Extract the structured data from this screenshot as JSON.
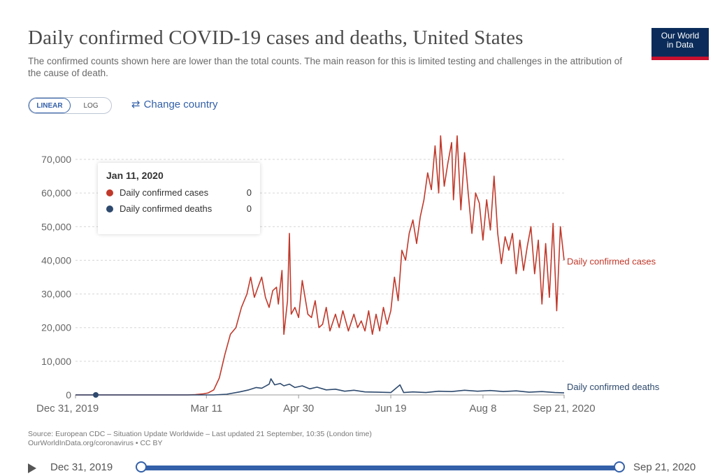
{
  "header": {
    "title": "Daily confirmed COVID-19 cases and deaths, United States",
    "subtitle": "The confirmed counts shown here are lower than the total counts. The main reason for this is limited testing and challenges in the attribution of the cause of death.",
    "logo_line1": "Our World",
    "logo_line2": "in Data"
  },
  "controls": {
    "scale_options": [
      "LINEAR",
      "LOG"
    ],
    "selected_scale": "LINEAR",
    "change_country_label": "Change country",
    "change_country_icon": "swap-arrows-icon"
  },
  "tooltip": {
    "date": "Jan 11, 2020",
    "rows": [
      {
        "label": "Daily confirmed cases",
        "value": "0",
        "color": "#c0392b"
      },
      {
        "label": "Daily confirmed deaths",
        "value": "0",
        "color": "#2e4a6e"
      }
    ]
  },
  "chart_data": {
    "type": "line",
    "title": "Daily confirmed COVID-19 cases and deaths, United States",
    "xlabel": "",
    "ylabel": "",
    "ylim": [
      0,
      70000
    ],
    "yticks": [
      0,
      10000,
      20000,
      30000,
      40000,
      50000,
      60000,
      70000
    ],
    "ytick_labels": [
      "0",
      "10,000",
      "20,000",
      "30,000",
      "40,000",
      "50,000",
      "60,000",
      "70,000"
    ],
    "x_start": "2019-12-31",
    "x_end": "2020-09-21",
    "xtick_labels": [
      "Dec 31, 2019",
      "Mar 11",
      "Apr 30",
      "Jun 19",
      "Aug 8",
      "Sep 21, 2020"
    ],
    "xtick_dates": [
      "2019-12-31",
      "2020-03-11",
      "2020-04-30",
      "2020-06-19",
      "2020-08-08",
      "2020-09-21"
    ],
    "grid": "horizontal dotted",
    "hover_date": "2020-01-11",
    "series": [
      {
        "name": "Daily confirmed cases",
        "color": "#c0392b",
        "points": [
          [
            "2019-12-31",
            0
          ],
          [
            "2020-03-01",
            0
          ],
          [
            "2020-03-05",
            100
          ],
          [
            "2020-03-09",
            300
          ],
          [
            "2020-03-12",
            600
          ],
          [
            "2020-03-15",
            1500
          ],
          [
            "2020-03-18",
            5000
          ],
          [
            "2020-03-21",
            12000
          ],
          [
            "2020-03-24",
            18000
          ],
          [
            "2020-03-27",
            20000
          ],
          [
            "2020-03-30",
            26000
          ],
          [
            "2020-04-02",
            30000
          ],
          [
            "2020-04-04",
            35000
          ],
          [
            "2020-04-06",
            29000
          ],
          [
            "2020-04-08",
            32000
          ],
          [
            "2020-04-10",
            35000
          ],
          [
            "2020-04-12",
            29000
          ],
          [
            "2020-04-14",
            26000
          ],
          [
            "2020-04-16",
            31000
          ],
          [
            "2020-04-18",
            32000
          ],
          [
            "2020-04-19",
            27000
          ],
          [
            "2020-04-21",
            37000
          ],
          [
            "2020-04-22",
            18000
          ],
          [
            "2020-04-24",
            28000
          ],
          [
            "2020-04-25",
            48000
          ],
          [
            "2020-04-26",
            24000
          ],
          [
            "2020-04-28",
            26000
          ],
          [
            "2020-04-30",
            23000
          ],
          [
            "2020-05-02",
            34000
          ],
          [
            "2020-05-05",
            24000
          ],
          [
            "2020-05-07",
            23000
          ],
          [
            "2020-05-09",
            28000
          ],
          [
            "2020-05-11",
            20000
          ],
          [
            "2020-05-13",
            21000
          ],
          [
            "2020-05-15",
            26000
          ],
          [
            "2020-05-17",
            19000
          ],
          [
            "2020-05-20",
            24000
          ],
          [
            "2020-05-22",
            20000
          ],
          [
            "2020-05-24",
            25000
          ],
          [
            "2020-05-27",
            19000
          ],
          [
            "2020-05-30",
            24000
          ],
          [
            "2020-06-01",
            20000
          ],
          [
            "2020-06-03",
            22000
          ],
          [
            "2020-06-05",
            19000
          ],
          [
            "2020-06-07",
            25000
          ],
          [
            "2020-06-09",
            18000
          ],
          [
            "2020-06-11",
            24000
          ],
          [
            "2020-06-13",
            19000
          ],
          [
            "2020-06-15",
            26000
          ],
          [
            "2020-06-17",
            21000
          ],
          [
            "2020-06-19",
            25000
          ],
          [
            "2020-06-21",
            35000
          ],
          [
            "2020-06-23",
            28000
          ],
          [
            "2020-06-25",
            43000
          ],
          [
            "2020-06-27",
            40000
          ],
          [
            "2020-06-29",
            48000
          ],
          [
            "2020-07-01",
            52000
          ],
          [
            "2020-07-03",
            45000
          ],
          [
            "2020-07-05",
            53000
          ],
          [
            "2020-07-07",
            58000
          ],
          [
            "2020-07-09",
            66000
          ],
          [
            "2020-07-11",
            61000
          ],
          [
            "2020-07-13",
            74000
          ],
          [
            "2020-07-15",
            60000
          ],
          [
            "2020-07-16",
            77000
          ],
          [
            "2020-07-18",
            62000
          ],
          [
            "2020-07-20",
            69000
          ],
          [
            "2020-07-22",
            75000
          ],
          [
            "2020-07-23",
            58000
          ],
          [
            "2020-07-25",
            77000
          ],
          [
            "2020-07-27",
            55000
          ],
          [
            "2020-07-29",
            72000
          ],
          [
            "2020-07-31",
            60000
          ],
          [
            "2020-08-02",
            48000
          ],
          [
            "2020-08-04",
            60000
          ],
          [
            "2020-08-06",
            57000
          ],
          [
            "2020-08-08",
            46000
          ],
          [
            "2020-08-10",
            58000
          ],
          [
            "2020-08-12",
            49000
          ],
          [
            "2020-08-14",
            65000
          ],
          [
            "2020-08-16",
            48000
          ],
          [
            "2020-08-18",
            39000
          ],
          [
            "2020-08-20",
            47000
          ],
          [
            "2020-08-22",
            43000
          ],
          [
            "2020-08-24",
            48000
          ],
          [
            "2020-08-26",
            36000
          ],
          [
            "2020-08-28",
            46000
          ],
          [
            "2020-08-30",
            37000
          ],
          [
            "2020-09-01",
            44000
          ],
          [
            "2020-09-03",
            50000
          ],
          [
            "2020-09-05",
            36000
          ],
          [
            "2020-09-07",
            46000
          ],
          [
            "2020-09-09",
            27000
          ],
          [
            "2020-09-11",
            45000
          ],
          [
            "2020-09-13",
            29000
          ],
          [
            "2020-09-15",
            51000
          ],
          [
            "2020-09-17",
            25000
          ],
          [
            "2020-09-19",
            50000
          ],
          [
            "2020-09-21",
            40000
          ]
        ]
      },
      {
        "name": "Daily confirmed deaths",
        "color": "#2e4a6e",
        "points": [
          [
            "2019-12-31",
            0
          ],
          [
            "2020-03-15",
            0
          ],
          [
            "2020-03-22",
            200
          ],
          [
            "2020-03-29",
            900
          ],
          [
            "2020-04-03",
            1500
          ],
          [
            "2020-04-07",
            2200
          ],
          [
            "2020-04-10",
            2000
          ],
          [
            "2020-04-14",
            3200
          ],
          [
            "2020-04-15",
            4800
          ],
          [
            "2020-04-17",
            3000
          ],
          [
            "2020-04-20",
            3400
          ],
          [
            "2020-04-22",
            2700
          ],
          [
            "2020-04-25",
            3200
          ],
          [
            "2020-04-28",
            2200
          ],
          [
            "2020-05-02",
            2700
          ],
          [
            "2020-05-06",
            1800
          ],
          [
            "2020-05-10",
            2300
          ],
          [
            "2020-05-15",
            1500
          ],
          [
            "2020-05-20",
            1700
          ],
          [
            "2020-05-25",
            1100
          ],
          [
            "2020-05-30",
            1400
          ],
          [
            "2020-06-05",
            900
          ],
          [
            "2020-06-12",
            800
          ],
          [
            "2020-06-19",
            700
          ],
          [
            "2020-06-24",
            3000
          ],
          [
            "2020-06-26",
            700
          ],
          [
            "2020-07-01",
            900
          ],
          [
            "2020-07-08",
            700
          ],
          [
            "2020-07-15",
            1100
          ],
          [
            "2020-07-22",
            1000
          ],
          [
            "2020-07-29",
            1400
          ],
          [
            "2020-08-05",
            1100
          ],
          [
            "2020-08-12",
            1300
          ],
          [
            "2020-08-19",
            1000
          ],
          [
            "2020-08-26",
            1200
          ],
          [
            "2020-09-02",
            800
          ],
          [
            "2020-09-09",
            1000
          ],
          [
            "2020-09-16",
            700
          ],
          [
            "2020-09-21",
            600
          ]
        ]
      }
    ]
  },
  "footer": {
    "source_line1": "Source: European CDC – Situation Update Worldwide – Last updated 21 September, 10:35 (London time)",
    "source_line2": "OurWorldInData.org/coronavirus • CC BY"
  },
  "timeline": {
    "start_label": "Dec 31, 2019",
    "end_label": "Sep 21, 2020",
    "play_icon": "play-icon"
  }
}
